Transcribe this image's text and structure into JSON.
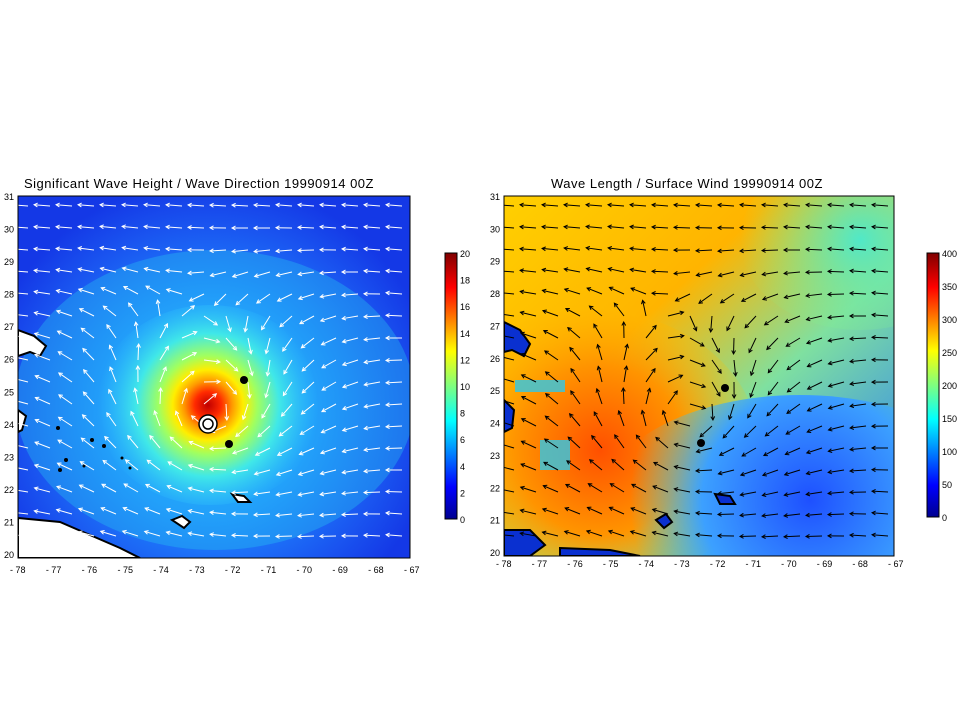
{
  "panels": [
    {
      "title": "Significant Wave Height / Wave Direction 19990914 00Z",
      "xticks": [
        "- 78",
        "- 77",
        "- 76",
        "- 75",
        "- 74",
        "- 73",
        "- 72",
        "- 71",
        "- 70",
        "- 69",
        "- 68",
        "- 67"
      ],
      "yticks": [
        "31",
        "30",
        "29",
        "28",
        "27",
        "26",
        "25",
        "24",
        "23",
        "22",
        "21",
        "20"
      ],
      "colorbar": {
        "ticks": [
          "20",
          "18",
          "16",
          "14",
          "12",
          "10",
          "8",
          "6",
          "4",
          "2",
          "0"
        ],
        "colormap": "jet",
        "range": [
          0,
          20
        ]
      },
      "vector_color": "#ffffff"
    },
    {
      "title": "Wave Length / Surface Wind 19990914 00Z",
      "xticks": [
        "- 78",
        "- 77",
        "- 76",
        "- 75",
        "- 74",
        "- 73",
        "- 72",
        "- 71",
        "- 70",
        "- 69",
        "- 68",
        "- 67"
      ],
      "yticks": [
        "31",
        "30",
        "29",
        "28",
        "27",
        "26",
        "25",
        "24",
        "23",
        "22",
        "21",
        "20"
      ],
      "colorbar": {
        "ticks": [
          "400",
          "350",
          "300",
          "250",
          "200",
          "150",
          "100",
          "50",
          "0"
        ],
        "colormap": "jet",
        "range": [
          0,
          400
        ]
      },
      "vector_color": "#000000"
    }
  ],
  "storm_center": {
    "lon": -72.5,
    "lat": 24.5
  },
  "markers": [
    {
      "lon": -71.8,
      "lat": 25.5
    },
    {
      "lon": -72.2,
      "lat": 23.7
    }
  ]
}
